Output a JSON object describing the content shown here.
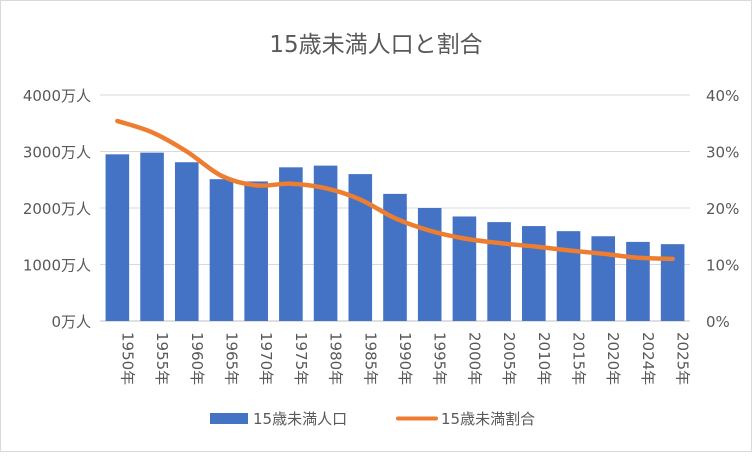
{
  "chart_data": {
    "type": "bar",
    "title": "15歳未満人口と割合",
    "categories": [
      "1950年",
      "1955年",
      "1960年",
      "1965年",
      "1970年",
      "1975年",
      "1980年",
      "1985年",
      "1990年",
      "1995年",
      "2000年",
      "2005年",
      "2010年",
      "2015年",
      "2020年",
      "2024年",
      "2025年"
    ],
    "series": [
      {
        "name": "15歳未満人口",
        "type": "bar",
        "axis": "left",
        "color": "#4472C4",
        "values": [
          2950,
          2980,
          2810,
          2510,
          2470,
          2720,
          2750,
          2600,
          2250,
          2000,
          1850,
          1750,
          1680,
          1590,
          1500,
          1400,
          1360
        ]
      },
      {
        "name": "15歳未満割合",
        "type": "line",
        "axis": "right",
        "color": "#ED7D31",
        "values": [
          35.4,
          33.4,
          30.0,
          25.7,
          24.0,
          24.3,
          23.5,
          21.5,
          18.2,
          16.0,
          14.6,
          13.8,
          13.2,
          12.5,
          11.9,
          11.2,
          11.0
        ]
      }
    ],
    "y_left": {
      "ylim": [
        0,
        4000
      ],
      "ticks": [
        0,
        1000,
        2000,
        3000,
        4000
      ],
      "tick_labels": [
        "0万人",
        "1000万人",
        "2000万人",
        "3000万人",
        "4000万人"
      ]
    },
    "y_right": {
      "ylim": [
        0,
        40
      ],
      "ticks": [
        0,
        10,
        20,
        30,
        40
      ],
      "tick_labels": [
        "0%",
        "10%",
        "20%",
        "30%",
        "40%"
      ]
    },
    "grid": true,
    "legend_position": "bottom"
  }
}
